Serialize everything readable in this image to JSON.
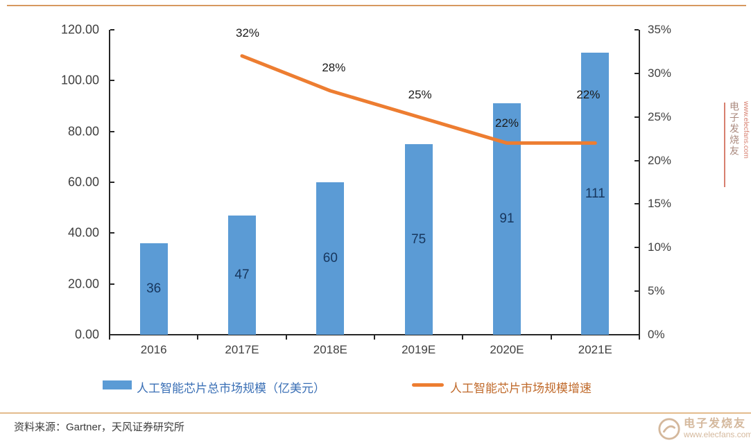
{
  "chart_data": {
    "type": "bar",
    "title": "",
    "categories": [
      "2016",
      "2017E",
      "2018E",
      "2019E",
      "2020E",
      "2021E"
    ],
    "series": [
      {
        "name": "人工智能芯片总市场规模（亿美元）",
        "type": "bar",
        "values": [
          36,
          47,
          60,
          75,
          91,
          111
        ],
        "data_labels": [
          "36",
          "47",
          "60",
          "75",
          "91",
          "111"
        ]
      },
      {
        "name": "人工智能芯片市场规模增速",
        "type": "line",
        "values_pct": [
          null,
          32,
          28,
          25,
          22,
          22
        ],
        "data_labels": [
          "",
          "32%",
          "28%",
          "25%",
          "22%",
          "22%"
        ]
      }
    ],
    "left_axis": {
      "ticks": [
        "120.00",
        "100.00",
        "80.00",
        "60.00",
        "40.00",
        "20.00",
        "0.00"
      ],
      "min": 0,
      "max": 120
    },
    "right_axis": {
      "ticks": [
        "35%",
        "30%",
        "25%",
        "20%",
        "15%",
        "10%",
        "5%",
        "0%"
      ],
      "min": 0,
      "max": 35
    },
    "grid": false,
    "legend_position": "bottom"
  },
  "footer": {
    "source": "资料来源：Gartner，天风证券研究所"
  },
  "watermark": {
    "brand": "电子发烧友",
    "url": "www.elecfans.com"
  },
  "colors": {
    "bar": "#5b9bd5",
    "line": "#ed7d31",
    "bar_label": "#17365d",
    "legend_bar_text": "#3a6fb5",
    "legend_line_text": "#c06a2b"
  }
}
